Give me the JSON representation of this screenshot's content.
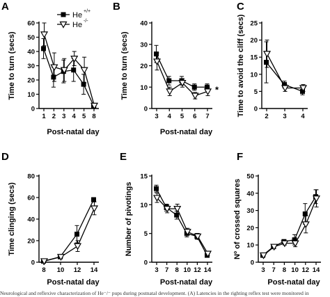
{
  "caption": "Neurological and reflexive characterization of He⁻/⁻ pups during postnatal development. (A) Latencies in the righting reflex test were monitored in",
  "legend": {
    "wt_label": "He",
    "wt_sup": "+/+",
    "ko_label": "He",
    "ko_sup": "-/-"
  },
  "chart_data": [
    {
      "panel": "A",
      "type": "line",
      "xlabel": "Post-natal day",
      "ylabel": "Time to turn (secs)",
      "categories": [
        "1",
        "2",
        "3",
        "4",
        "5",
        "8"
      ],
      "ylim": [
        0,
        60
      ],
      "yticks": [
        0,
        10,
        20,
        30,
        40,
        50,
        60
      ],
      "grid": false,
      "series": [
        {
          "name": "He+/+",
          "marker": "square",
          "values": [
            42,
            22,
            26,
            27,
            17,
            2
          ],
          "errors": [
            7,
            7,
            8,
            8,
            7,
            1
          ]
        },
        {
          "name": "He-/-",
          "marker": "triangle-down",
          "values": [
            52,
            29,
            27,
            35,
            27,
            2
          ],
          "errors": [
            8,
            10,
            8,
            5,
            9,
            1
          ]
        }
      ]
    },
    {
      "panel": "B",
      "type": "line",
      "xlabel": "Post-natal day",
      "ylabel": "Time to turn (secs)",
      "categories": [
        "3",
        "4",
        "5",
        "6",
        "7"
      ],
      "ylim": [
        0,
        40
      ],
      "yticks": [
        0,
        10,
        20,
        30,
        40
      ],
      "grid": false,
      "annotation": "*",
      "series": [
        {
          "name": "He+/+",
          "marker": "square",
          "values": [
            25.5,
            13,
            13,
            10,
            10
          ],
          "errors": [
            4,
            2,
            2,
            1.5,
            1.5
          ]
        },
        {
          "name": "He-/-",
          "marker": "triangle-down",
          "values": [
            22,
            8,
            12,
            6,
            8
          ],
          "errors": [
            4,
            2,
            2,
            1.5,
            2
          ]
        }
      ]
    },
    {
      "panel": "C",
      "type": "line",
      "xlabel": "",
      "ylabel": "Time to avoid the cliff (secs)",
      "categories": [
        "2",
        "3",
        "4"
      ],
      "ylim": [
        0,
        25
      ],
      "yticks": [
        0,
        5,
        10,
        15,
        20,
        25
      ],
      "grid": false,
      "series": [
        {
          "name": "He+/+",
          "marker": "square",
          "values": [
            13.5,
            7,
            5
          ],
          "errors": [
            6,
            1,
            1
          ]
        },
        {
          "name": "He-/-",
          "marker": "triangle-down",
          "values": [
            16,
            6,
            6
          ],
          "errors": [
            4,
            1,
            1
          ]
        }
      ]
    },
    {
      "panel": "D",
      "type": "line",
      "xlabel": "Post-natal day",
      "ylabel": "Time clinging (secs)",
      "categories": [
        "8",
        "10",
        "12",
        "14"
      ],
      "ylim": [
        0,
        80
      ],
      "yticks": [
        0,
        20,
        40,
        60,
        80
      ],
      "grid": false,
      "series": [
        {
          "name": "He+/+",
          "marker": "square",
          "values": [
            1,
            5,
            26,
            58
          ],
          "errors": [
            0.5,
            1,
            8,
            2
          ]
        },
        {
          "name": "He-/-",
          "marker": "triangle-down",
          "values": [
            1,
            5,
            15,
            50
          ],
          "errors": [
            0.5,
            1,
            5,
            6
          ]
        }
      ]
    },
    {
      "panel": "E",
      "type": "line",
      "xlabel": "Post-natal day",
      "ylabel": "Number of pivotings",
      "categories": [
        "3",
        "7",
        "8",
        "10",
        "12",
        "14"
      ],
      "ylim": [
        0,
        15
      ],
      "yticks": [
        0,
        5,
        10,
        15
      ],
      "grid": false,
      "series": [
        {
          "name": "He+/+",
          "marker": "square",
          "values": [
            12.8,
            9.5,
            8.2,
            5,
            4.5,
            1.2
          ],
          "errors": [
            0.6,
            0.6,
            0.7,
            0.6,
            0.5,
            0.3
          ]
        },
        {
          "name": "He-/-",
          "marker": "triangle-down",
          "values": [
            11.2,
            9.3,
            9.3,
            5.3,
            4.5,
            1.5
          ],
          "errors": [
            0.8,
            0.7,
            0.8,
            0.6,
            0.5,
            0.3
          ]
        }
      ]
    },
    {
      "panel": "F",
      "type": "line",
      "xlabel": "Post-natal day",
      "ylabel": "Nº of crossed squares",
      "categories": [
        "3",
        "7",
        "8",
        "10",
        "12",
        "14"
      ],
      "ylim": [
        0,
        50
      ],
      "yticks": [
        0,
        10,
        20,
        30,
        40,
        50
      ],
      "grid": false,
      "series": [
        {
          "name": "He+/+",
          "marker": "square",
          "values": [
            4,
            9,
            12,
            13,
            28,
            38
          ],
          "errors": [
            0.5,
            1,
            1,
            3,
            6,
            4
          ]
        },
        {
          "name": "He-/-",
          "marker": "triangle-down",
          "values": [
            4,
            9,
            11,
            11,
            22,
            37
          ],
          "errors": [
            0.5,
            1,
            1,
            2,
            5,
            5
          ]
        }
      ]
    }
  ]
}
